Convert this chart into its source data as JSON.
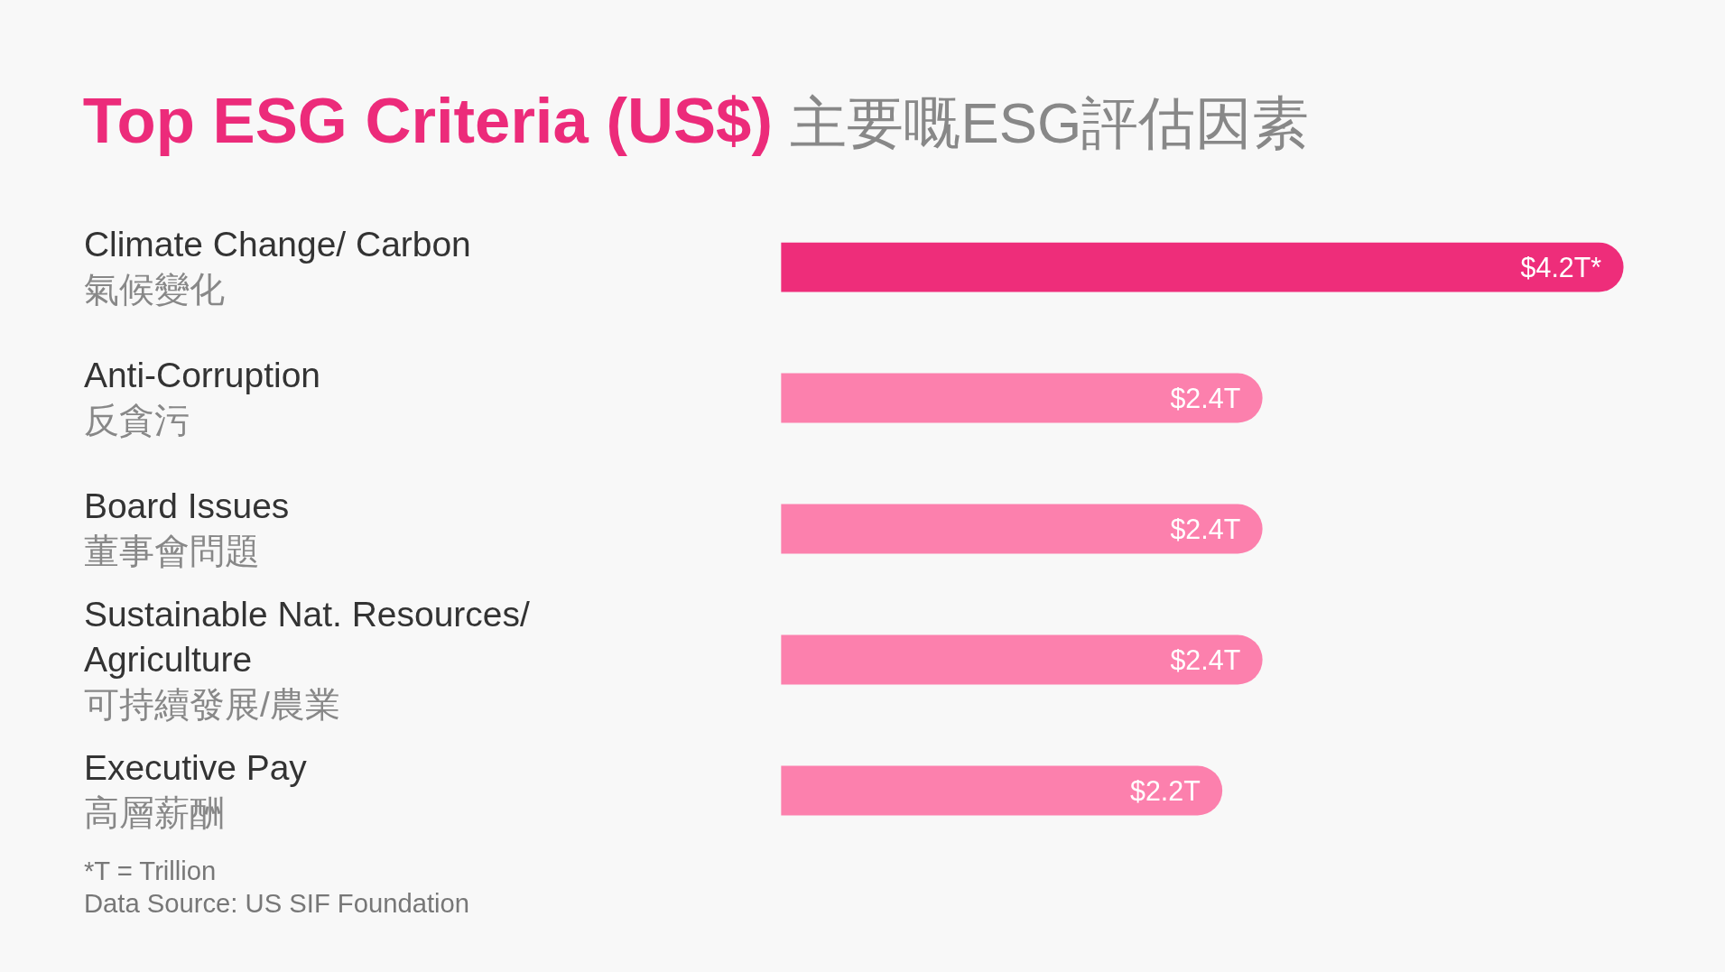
{
  "chart_data": {
    "type": "bar",
    "orientation": "horizontal",
    "title": "Top ESG Criteria (US$)",
    "subtitle": "主要嘅ESG評估因素",
    "categories": [
      "Climate Change/ Carbon\n氣候變化",
      "Anti-Corruption\n反貪污",
      "Board Issues\n董事會問題",
      "Sustainable Nat. Resources/\nAgriculture\n可持續發展/農業",
      "Executive Pay\n高層薪酬"
    ],
    "values": [
      4.2,
      2.4,
      2.4,
      2.4,
      2.2
    ],
    "colors": [
      "#ee2d7a",
      "#fc80ad",
      "#fc80ad",
      "#fc80ad",
      "#fc80ad"
    ],
    "value_labels": [
      "$4.2T*",
      "$2.4T",
      "$2.4T",
      "$2.4T",
      "$2.2T"
    ],
    "annotations": [
      "*T = Trillion",
      "Data Source: US SIF Foundation"
    ]
  }
}
